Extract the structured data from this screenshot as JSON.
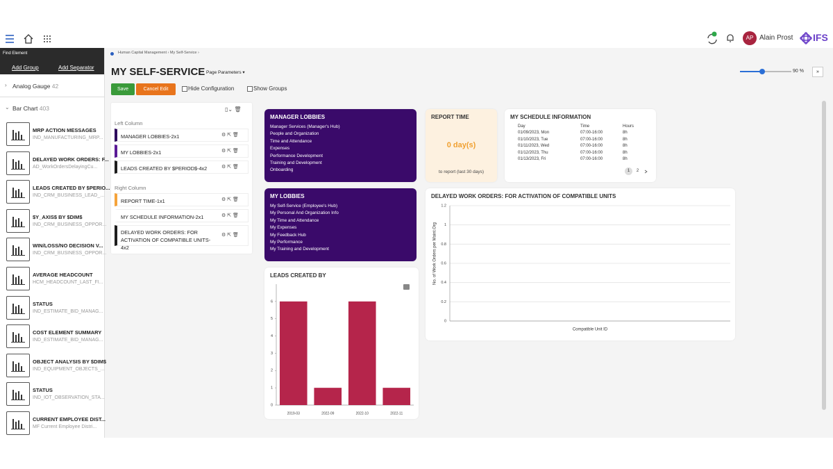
{
  "topbar": {
    "user_initials": "AP",
    "user_name": "Alain Prost",
    "logo": "IFS"
  },
  "sidebar": {
    "find_element": "Find Element",
    "add_group": "Add Group",
    "add_separator": "Add Separator",
    "groups": [
      {
        "name": "Analog Gauge",
        "count": 42
      },
      {
        "name": "Bar Chart",
        "count": 403
      }
    ],
    "items": [
      {
        "title": "MRP ACTION MESSAGES",
        "subtitle": "IND_MANUFACTURING_MRP..."
      },
      {
        "title": "DELAYED WORK ORDERS: F...",
        "subtitle": "AD_WorkOrdersDelayingCu..."
      },
      {
        "title": "LEADS CREATED BY $PERIO...",
        "subtitle": "IND_CRM_BUSINESS_LEAD_..."
      },
      {
        "title": "$Y_AXIS$ BY $DIM$",
        "subtitle": "IND_CRM_BUSINESS_OPPOR..."
      },
      {
        "title": "WIN/LOSS/NO DECISION V...",
        "subtitle": "IND_CRM_BUSINESS_OPPOR..."
      },
      {
        "title": "AVERAGE HEADCOUNT",
        "subtitle": "HCM_HEADCOUNT_LAST_FI..."
      },
      {
        "title": "STATUS",
        "subtitle": "IND_ESTIMATE_BID_MANAG..."
      },
      {
        "title": "COST ELEMENT SUMMARY",
        "subtitle": "IND_ESTIMATE_BID_MANAG..."
      },
      {
        "title": "OBJECT ANALYSIS BY $DIM$",
        "subtitle": "IND_EQUIPMENT_OBJECTS_..."
      },
      {
        "title": "STATUS",
        "subtitle": "IND_IOT_OBSERVATION_STA..."
      },
      {
        "title": "CURRENT EMPLOYEE DIST...",
        "subtitle": "MF Current Employee Distri..."
      }
    ]
  },
  "breadcrumb": [
    "Human Capital Management",
    "My Self-Service"
  ],
  "page": {
    "title": "MY SELF-SERVICE",
    "page_parameters": "Page Parameters",
    "zoom_label": "90 %",
    "save": "Save",
    "cancel_edit": "Cancel Edit",
    "hide_configuration": "Hide Configuration",
    "show_groups": "Show Groups"
  },
  "configuration": {
    "left_column": "Left Column",
    "left_items": [
      {
        "label": "MANAGER LOBBIES-2x1",
        "color": "#2e0a5c"
      },
      {
        "label": "MY LOBBIES-2x1",
        "color": "#5a1a96"
      },
      {
        "label": "LEADS CREATED BY $PERIOD$-4x2",
        "color": "#1e1e1e"
      }
    ],
    "right_column": "Right Column",
    "right_items": [
      {
        "label": "REPORT TIME-1x1",
        "color": "#f5a33a"
      },
      {
        "label": "MY SCHEDULE INFORMATION-2x1",
        "color": "#ffffff"
      },
      {
        "label": "DELAYED WORK ORDERS: FOR ACTIVATION OF COMPATIBLE UNITS-4x2",
        "color": "#1e1e1e"
      }
    ]
  },
  "manager_lobbies": {
    "title": "MANAGER LOBBIES",
    "links": [
      "Manager Services (Manager's Hub)",
      "People and Organization",
      "Time and Attendance",
      "Expenses",
      "Performance Development",
      "Training and Development",
      "Onboarding"
    ]
  },
  "my_lobbies": {
    "title": "MY LOBBIES",
    "links": [
      "My Self-Service (Employee's Hub)",
      "My Personal And Organization Info",
      "My Time and Attendance",
      "My Expenses",
      "My Feedback Hub",
      "My Performance",
      "My Training and Development"
    ]
  },
  "report_time": {
    "title": "REPORT TIME",
    "value": "0 day(s)",
    "note": "to report (last 30 days)"
  },
  "schedule": {
    "title": "MY SCHEDULE INFORMATION",
    "headers": [
      "Day",
      "Time",
      "Hours"
    ],
    "rows": [
      [
        "01/09/2023, Mon",
        "07:00-16:00",
        "8h"
      ],
      [
        "01/10/2023, Tue",
        "07:00-16:00",
        "8h"
      ],
      [
        "01/11/2023, Wed",
        "07:00-16:00",
        "8h"
      ],
      [
        "01/12/2023, Thu",
        "07:00-16:00",
        "8h"
      ],
      [
        "01/13/2023, Fri",
        "07:00-16:00",
        "8h"
      ]
    ],
    "pages": [
      "1",
      "2"
    ]
  },
  "chart_data": [
    {
      "type": "bar",
      "title": "LEADS CREATED BY",
      "categories": [
        "2019-03",
        "2022-09",
        "2022-10",
        "2022-11"
      ],
      "values": [
        6,
        1,
        6,
        1
      ],
      "color": "#b5254b",
      "ylim": [
        0,
        7
      ],
      "yticks": [
        0,
        1,
        2,
        3,
        4,
        5,
        6
      ],
      "grid": false
    },
    {
      "type": "bar",
      "title": "DELAYED WORK ORDERS: FOR ACTIVATION OF COMPATIBLE UNITS",
      "x_label": "Compatible Unit ID",
      "y_label": "No. of Work Orders per Maint.Org",
      "categories": [],
      "values": [],
      "color": "#b5254b",
      "ylim": [
        0,
        1.2
      ],
      "yticks": [
        0,
        0.2,
        0.4,
        0.6,
        0.8,
        1,
        1.2
      ],
      "grid": true
    }
  ]
}
